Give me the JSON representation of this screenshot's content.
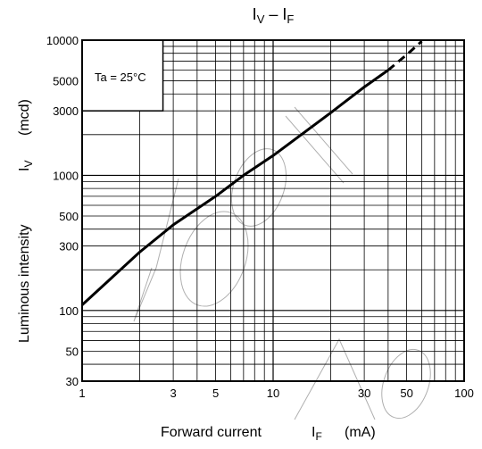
{
  "chart_data": {
    "type": "line",
    "title": {
      "main": "I",
      "sub1": "V",
      "dash": " – I",
      "sub2": "F"
    },
    "xlabel": {
      "main": "Forward current",
      "symbol": "I",
      "sub": "F",
      "unit": "(mA)"
    },
    "ylabel": {
      "main": "Luminous intensity",
      "symbol": "I",
      "sub": "V",
      "unit": "(mcd)"
    },
    "xscale": "log",
    "yscale": "log",
    "xlim": [
      1,
      100
    ],
    "ylim": [
      30,
      10000
    ],
    "x_tick_labels": [
      "1",
      "3",
      "5",
      "10",
      "30",
      "50",
      "100"
    ],
    "y_tick_labels": [
      "30",
      "50",
      "100",
      "300",
      "500",
      "1000",
      "3000",
      "5000",
      "10000"
    ],
    "grid": true,
    "annotation": "Ta = 25°C",
    "series": [
      {
        "style": "solid",
        "x": [
          1,
          2,
          3,
          5,
          7,
          10,
          20,
          30,
          40
        ],
        "y": [
          110,
          270,
          430,
          700,
          1000,
          1400,
          2900,
          4500,
          6000
        ]
      },
      {
        "style": "dashed",
        "x": [
          40,
          50,
          60
        ],
        "y": [
          6000,
          7800,
          9800
        ]
      }
    ]
  }
}
